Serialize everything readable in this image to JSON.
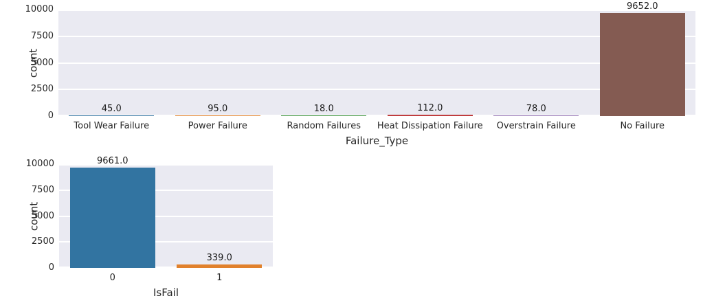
{
  "figure": {
    "background": "#ffffff",
    "plot_background": "#eaeaf2",
    "grid_color": "#ffffff",
    "text_color": "#262626"
  },
  "chart_data": [
    {
      "type": "bar",
      "title": "",
      "xlabel": "Failure_Type",
      "ylabel": "count",
      "categories": [
        "Tool Wear Failure",
        "Power Failure",
        "Random Failures",
        "Heat Dissipation Failure",
        "Overstrain Failure",
        "No Failure"
      ],
      "values": [
        45,
        95,
        18,
        112,
        78,
        9652
      ],
      "value_labels": [
        "45.0",
        "95.0",
        "18.0",
        "112.0",
        "78.0",
        "9652.0"
      ],
      "bar_colors": [
        "#3274a1",
        "#e1812c",
        "#3a923a",
        "#c03d3e",
        "#9372b2",
        "#845b52"
      ],
      "yticks": [
        "0",
        "2500",
        "5000",
        "7500",
        "10000"
      ],
      "ytick_values": [
        0,
        2500,
        5000,
        7500,
        10000
      ],
      "ylim": [
        0,
        10000
      ],
      "grid": true,
      "legend": null
    },
    {
      "type": "bar",
      "title": "",
      "xlabel": "IsFail",
      "ylabel": "count",
      "categories": [
        "0",
        "1"
      ],
      "values": [
        9661,
        339
      ],
      "value_labels": [
        "9661.0",
        "339.0"
      ],
      "bar_colors": [
        "#3274a1",
        "#e1812c"
      ],
      "yticks": [
        "0",
        "2500",
        "5000",
        "7500",
        "10000"
      ],
      "ytick_values": [
        0,
        2500,
        5000,
        7500,
        10000
      ],
      "ylim": [
        0,
        10000
      ],
      "grid": true,
      "legend": null
    }
  ]
}
